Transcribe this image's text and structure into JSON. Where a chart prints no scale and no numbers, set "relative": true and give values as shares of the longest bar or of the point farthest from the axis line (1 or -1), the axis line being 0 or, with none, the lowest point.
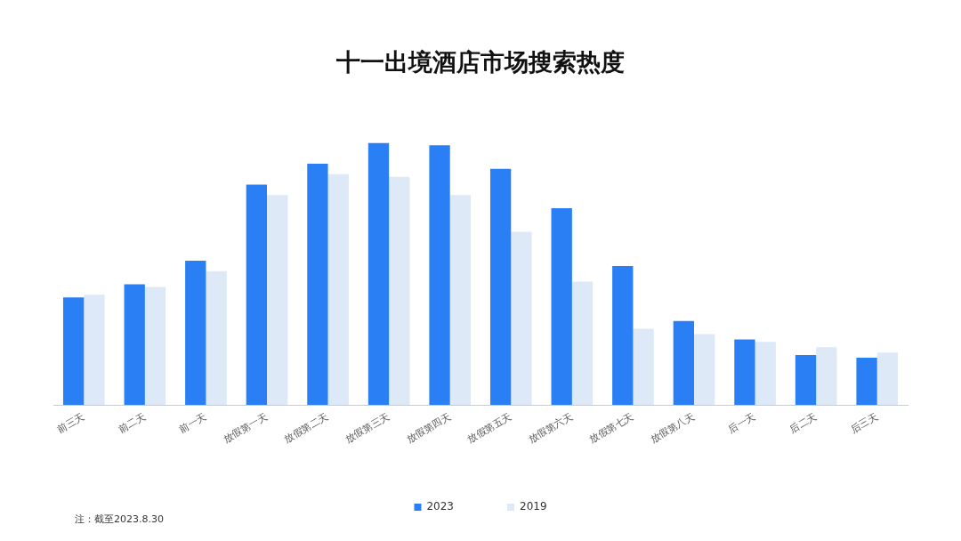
{
  "chart_data": {
    "type": "bar",
    "title": "十一出境酒店市场搜索热度",
    "relative": true,
    "legend": "bottom",
    "categories": [
      "前三天",
      "前二天",
      "前一天",
      "放假第一天",
      "放假第二天",
      "放假第三天",
      "放假第四天",
      "放假第五天",
      "放假第六天",
      "放假第七天",
      "放假第八天",
      "后一天",
      "后二天",
      "后三天"
    ],
    "series": [
      {
        "name": "2023",
        "color": "#2a7ff5",
        "values": [
          0.41,
          0.46,
          0.55,
          0.84,
          0.92,
          1,
          0.99,
          0.9,
          0.75,
          0.53,
          0.32,
          0.25,
          0.19,
          0.18
        ]
      },
      {
        "name": "2019",
        "color": "#dde9f6",
        "values": [
          0.42,
          0.45,
          0.51,
          0.8,
          0.88,
          0.87,
          0.8,
          0.66,
          0.47,
          0.29,
          0.27,
          0.24,
          0.22,
          0.2
        ]
      }
    ],
    "annotations": [
      "注：截至2023.8.30"
    ]
  }
}
